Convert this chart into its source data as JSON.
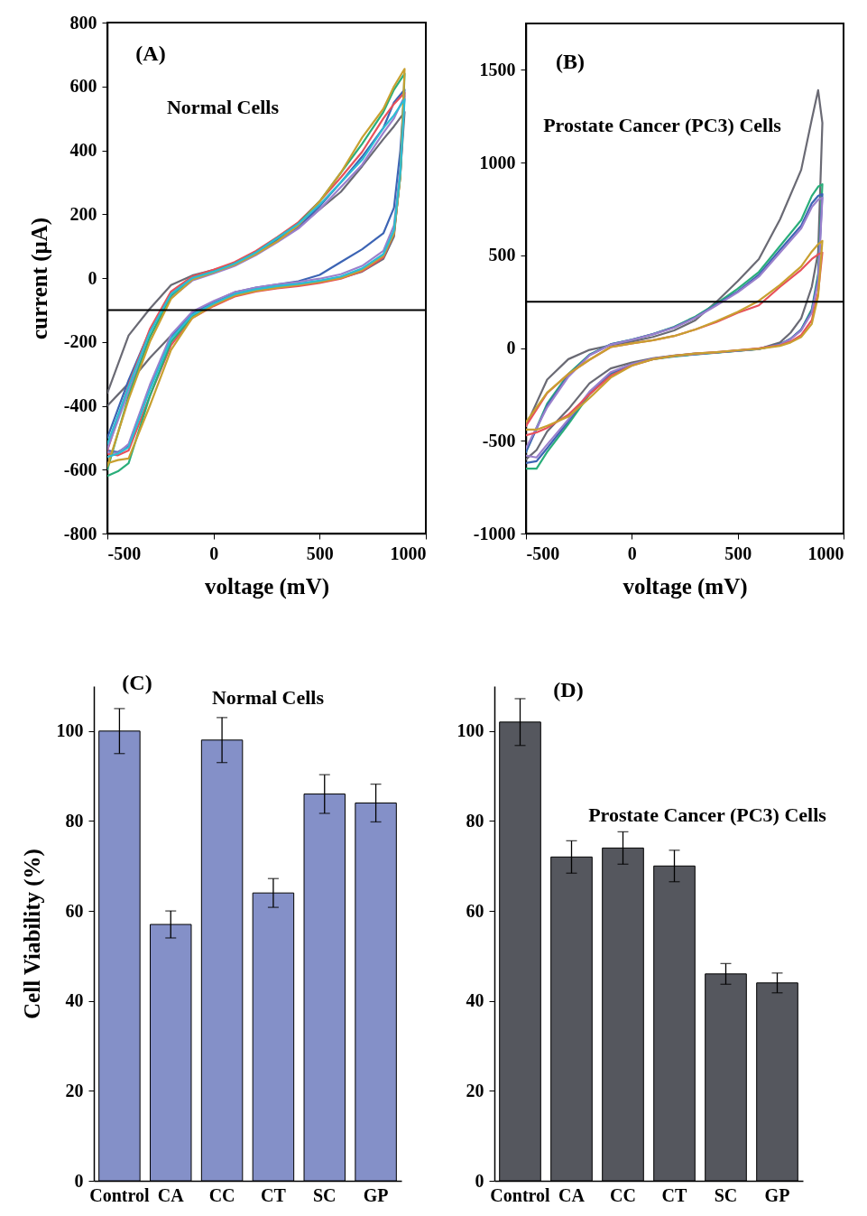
{
  "chart_data": [
    {
      "type": "line",
      "xlabel": "voltage (mV)",
      "ylabel": "current (μA)",
      "annotations": [
        "(A)",
        "Normal Cells"
      ],
      "xlim": [
        -500,
        1000
      ],
      "ylim": [
        -800,
        800
      ],
      "xticks": [
        -500,
        0,
        500,
        1000
      ],
      "yticks": [
        -800,
        -600,
        -400,
        -200,
        0,
        200,
        400,
        600,
        800
      ],
      "ref_lines": [
        {
          "axis": "y",
          "value": -100,
          "color": "#000000"
        }
      ],
      "x": [
        -500,
        -450,
        -400,
        -300,
        -200,
        -100,
        0,
        100,
        200,
        300,
        400,
        500,
        600,
        700,
        800,
        850,
        880,
        900,
        850,
        800,
        700,
        600,
        500,
        400,
        300,
        200,
        100,
        0,
        -100,
        -200,
        -300,
        -400,
        -500
      ],
      "series": [
        {
          "color": "#6a6a74",
          "values": [
            -400,
            -365,
            -330,
            -250,
            -180,
            -110,
            -75,
            -45,
            -33,
            -25,
            -18,
            -10,
            0,
            20,
            60,
            130,
            330,
            520,
            475,
            435,
            350,
            270,
            215,
            160,
            115,
            80,
            45,
            25,
            8,
            -22,
            -96,
            -180,
            -360
          ]
        },
        {
          "color": "#3c64b4",
          "values": [
            -540,
            -545,
            -525,
            -340,
            -185,
            -110,
            -75,
            -45,
            -30,
            -20,
            -10,
            10,
            50,
            90,
            140,
            220,
            400,
            590,
            550,
            470,
            380,
            300,
            225,
            160,
            120,
            80,
            45,
            20,
            0,
            -50,
            -165,
            -320,
            -500
          ]
        },
        {
          "color": "#e8505a",
          "values": [
            -550,
            -555,
            -540,
            -370,
            -210,
            -125,
            -88,
            -58,
            -42,
            -32,
            -25,
            -15,
            -2,
            22,
            65,
            140,
            320,
            580,
            545,
            500,
            395,
            315,
            240,
            175,
            128,
            85,
            50,
            26,
            5,
            -42,
            -160,
            -335,
            -540
          ]
        },
        {
          "color": "#9a80cc",
          "values": [
            -545,
            -548,
            -520,
            -335,
            -178,
            -105,
            -72,
            -44,
            -30,
            -20,
            -12,
            -2,
            12,
            38,
            85,
            165,
            345,
            570,
            500,
            455,
            355,
            285,
            215,
            155,
            112,
            72,
            38,
            14,
            -8,
            -62,
            -185,
            -355,
            -535
          ]
        },
        {
          "color": "#2aae7a",
          "values": [
            -620,
            -605,
            -580,
            -370,
            -200,
            -120,
            -82,
            -52,
            -36,
            -26,
            -20,
            -10,
            3,
            28,
            72,
            145,
            320,
            640,
            590,
            520,
            420,
            330,
            240,
            170,
            125,
            80,
            45,
            20,
            0,
            -55,
            -185,
            -370,
            -600
          ]
        },
        {
          "color": "#c8a030",
          "values": [
            -580,
            -570,
            -565,
            -400,
            -225,
            -125,
            -85,
            -55,
            -40,
            -30,
            -22,
            -12,
            0,
            25,
            70,
            140,
            320,
            655,
            600,
            530,
            440,
            330,
            240,
            165,
            115,
            75,
            42,
            18,
            -5,
            -65,
            -200,
            -380,
            -590
          ]
        },
        {
          "color": "#2cbcd4",
          "values": [
            -560,
            -550,
            -530,
            -350,
            -190,
            -115,
            -80,
            -50,
            -35,
            -25,
            -18,
            -8,
            5,
            30,
            75,
            150,
            330,
            560,
            510,
            470,
            370,
            300,
            230,
            170,
            125,
            80,
            45,
            20,
            0,
            -50,
            -170,
            -340,
            -520
          ]
        }
      ]
    },
    {
      "type": "line",
      "xlabel": "voltage (mV)",
      "annotations": [
        "(B)",
        "Prostate Cancer (PC3) Cells"
      ],
      "xlim": [
        -500,
        1000
      ],
      "ylim": [
        -1000,
        1750
      ],
      "xticks": [
        -500,
        0,
        500,
        1000
      ],
      "yticks": [
        -1000,
        -500,
        0,
        500,
        1000,
        1500
      ],
      "ref_lines": [
        {
          "axis": "y",
          "value": 250,
          "color": "#000000"
        }
      ],
      "x": [
        -500,
        -450,
        -400,
        -300,
        -200,
        -100,
        0,
        100,
        200,
        300,
        400,
        500,
        600,
        700,
        750,
        800,
        850,
        880,
        900,
        880,
        850,
        800,
        700,
        600,
        500,
        400,
        300,
        200,
        100,
        0,
        -100,
        -200,
        -300,
        -400,
        -500
      ],
      "series": [
        {
          "color": "#6a6a74",
          "values": [
            -600,
            -550,
            -450,
            -330,
            -190,
            -110,
            -78,
            -55,
            -40,
            -30,
            -24,
            -15,
            -5,
            30,
            83,
            160,
            330,
            515,
            1214,
            1390,
            1233,
            961,
            694,
            480,
            360,
            250,
            150,
            95,
            60,
            35,
            15,
            -10,
            -60,
            -170,
            -420
          ]
        },
        {
          "color": "#2aae7a",
          "values": [
            -650,
            -650,
            -560,
            -410,
            -250,
            -140,
            -90,
            -60,
            -45,
            -35,
            -25,
            -15,
            -5,
            20,
            50,
            100,
            209,
            400,
            883,
            870,
            820,
            690,
            550,
            410,
            320,
            240,
            170,
            115,
            75,
            45,
            20,
            -35,
            -140,
            -300,
            -560
          ]
        },
        {
          "color": "#3c64b4",
          "values": [
            -620,
            -610,
            -540,
            -395,
            -240,
            -135,
            -88,
            -58,
            -43,
            -33,
            -24,
            -14,
            -4,
            20,
            50,
            100,
            200,
            380,
            830,
            820,
            780,
            660,
            530,
            395,
            305,
            235,
            165,
            112,
            75,
            45,
            20,
            -38,
            -150,
            -310,
            -560
          ]
        },
        {
          "color": "#9a80cc",
          "values": [
            -580,
            -590,
            -520,
            -385,
            -235,
            -130,
            -86,
            -57,
            -42,
            -32,
            -23,
            -14,
            -4,
            18,
            48,
            95,
            190,
            360,
            810,
            800,
            760,
            645,
            515,
            385,
            300,
            230,
            163,
            110,
            74,
            44,
            18,
            -40,
            -155,
            -320,
            -540
          ]
        },
        {
          "color": "#e8505a",
          "values": [
            -470,
            -455,
            -430,
            -360,
            -250,
            -150,
            -95,
            -60,
            -42,
            -30,
            -22,
            -12,
            -2,
            15,
            35,
            70,
            150,
            300,
            515,
            505,
            480,
            422,
            330,
            230,
            190,
            140,
            100,
            65,
            42,
            25,
            5,
            -63,
            -140,
            -243,
            -420
          ]
        },
        {
          "color": "#c8a030",
          "values": [
            -440,
            -440,
            -420,
            -370,
            -270,
            -160,
            -95,
            -60,
            -42,
            -30,
            -22,
            -12,
            -4,
            12,
            30,
            60,
            130,
            280,
            578,
            560,
            520,
            440,
            340,
            255,
            195,
            145,
            100,
            65,
            42,
            25,
            5,
            -63,
            -140,
            -240,
            -400
          ]
        }
      ]
    },
    {
      "type": "bar",
      "ylabel": "Cell Viability (%)",
      "annotations": [
        "(C)",
        "Normal Cells"
      ],
      "categories": [
        "Control",
        "CA",
        "CC",
        "CT",
        "SC",
        "GP"
      ],
      "values": [
        100,
        57,
        98,
        64,
        86,
        84
      ],
      "errors": [
        5,
        3,
        5,
        3.2,
        4.3,
        4.2
      ],
      "color": "#8490c8",
      "ylim": [
        0,
        110
      ],
      "yticks": [
        0,
        20,
        40,
        60,
        80,
        100
      ]
    },
    {
      "type": "bar",
      "annotations": [
        "(D)",
        "Prostate Cancer (PC3) Cells"
      ],
      "categories": [
        "Control",
        "CA",
        "CC",
        "CT",
        "SC",
        "GP"
      ],
      "values": [
        102,
        72,
        74,
        70,
        46,
        44
      ],
      "errors": [
        5.2,
        3.6,
        3.6,
        3.5,
        2.3,
        2.2
      ],
      "color": "#55575e",
      "ylim": [
        0,
        110
      ],
      "yticks": [
        0,
        20,
        40,
        60,
        80,
        100
      ]
    }
  ]
}
